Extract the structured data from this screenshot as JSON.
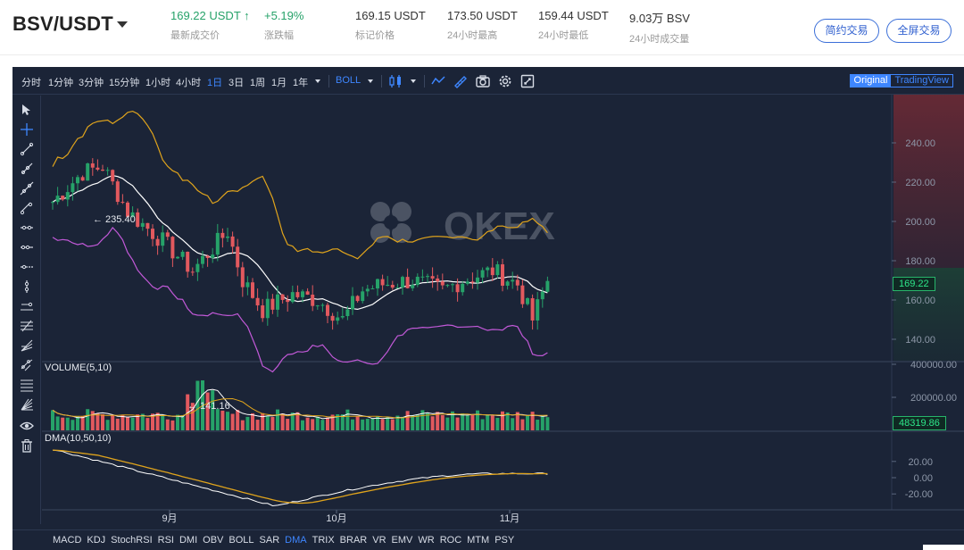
{
  "header": {
    "pair": "BSV/USDT",
    "last_price": "169.22 USDT ↑",
    "last_price_label": "最新成交价",
    "change": "+5.19%",
    "change_label": "涨跌幅",
    "mark_price": "169.15 USDT",
    "mark_price_label": "标记价格",
    "high_24h": "173.50 USDT",
    "high_24h_label": "24小时最高",
    "low_24h": "159.44 USDT",
    "low_24h_label": "24小时最低",
    "volume_24h": "9.03万 BSV",
    "volume_24h_label": "24小时成交量",
    "simple_trade": "简约交易",
    "fullscreen_trade": "全屏交易"
  },
  "toolbar": {
    "intervals": [
      "分时",
      "1分钟",
      "3分钟",
      "15分钟",
      "1小时",
      "4小时",
      "1日",
      "3日",
      "1周",
      "1月",
      "1年"
    ],
    "active_interval": "1日",
    "indicator": "BOLL",
    "view_original": "Original",
    "view_tradingview": "TradingView"
  },
  "watermark": "OKEX",
  "colors": {
    "up": "#26a269",
    "down": "#e2595e",
    "boll_mid": "#ffffff",
    "boll_upper": "#e0a41c",
    "boll_lower": "#c259d8",
    "accent": "#3e86ff"
  },
  "price_axis": [
    "240.00",
    "220.00",
    "200.00",
    "180.00",
    "160.00",
    "140.00"
  ],
  "current_price": "169.22",
  "annotations": {
    "high": "← 235.40",
    "low": "← 141.16"
  },
  "volume": {
    "label": "VOLUME(5,10)",
    "axis": [
      "400000.00",
      "200000.00"
    ],
    "current": "48319.86"
  },
  "dma": {
    "label": "DMA(10,50,10)",
    "axis": [
      "20.00",
      "0.00",
      "-20.00"
    ]
  },
  "time_axis": [
    "9月",
    "10月",
    "11月"
  ],
  "bottom_indicators": [
    "MACD",
    "KDJ",
    "StochRSI",
    "RSI",
    "DMI",
    "OBV",
    "BOLL",
    "SAR",
    "DMA",
    "TRIX",
    "BRAR",
    "VR",
    "EMV",
    "WR",
    "ROC",
    "MTM",
    "PSY"
  ],
  "active_bottom": "DMA",
  "left_tools": [
    "cursor-icon",
    "crosshair-icon",
    "trend-line-icon",
    "ray-icon",
    "extended-line-icon",
    "parallel-channel-icon",
    "horizontal-line-icon",
    "horizontal-ray-icon",
    "price-line-icon",
    "vertical-line-icon",
    "price-range-icon",
    "fib-retracement-icon",
    "fib-fan-icon",
    "fib-channel-icon",
    "gann-fan-icon",
    "measure-icon",
    "zoom-icon",
    "eye-icon",
    "trash-icon"
  ]
}
